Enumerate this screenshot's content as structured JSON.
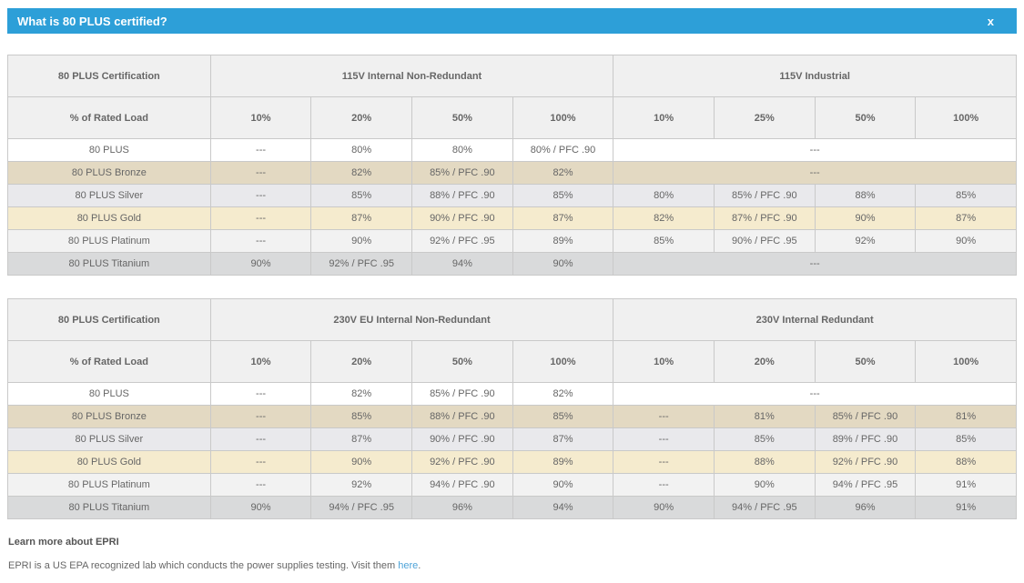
{
  "modal": {
    "title": "What is 80 PLUS certified?",
    "close_label": "x"
  },
  "colors": {
    "titlebar_bg": "#2d9fd8",
    "header_bg": "#f0f0f0",
    "border": "#c9c9c9",
    "link": "#4ea3d8",
    "tiers": {
      "plain": "#ffffff",
      "bronze": "#e3d9c2",
      "silver": "#e9e9ec",
      "gold": "#f5ebce",
      "platinum": "#f2f2f2",
      "titanium": "#d9dadb"
    }
  },
  "tables": [
    {
      "corner_header": "80 PLUS Certification",
      "row_label_header": "% of Rated Load",
      "groups": [
        {
          "label": "115V Internal Non-Redundant",
          "cols": [
            "10%",
            "20%",
            "50%",
            "100%"
          ]
        },
        {
          "label": "115V Industrial",
          "cols": [
            "10%",
            "25%",
            "50%",
            "100%"
          ]
        }
      ],
      "rows": [
        {
          "label": "80 PLUS",
          "tier": "plain",
          "cells": [
            {
              "t": "---"
            },
            {
              "t": "80%"
            },
            {
              "t": "80%"
            },
            {
              "t": "80% / PFC .90"
            },
            {
              "t": "---",
              "s": 4
            }
          ]
        },
        {
          "label": "80 PLUS Bronze",
          "tier": "bronze",
          "cells": [
            {
              "t": "---"
            },
            {
              "t": "82%"
            },
            {
              "t": "85% / PFC .90"
            },
            {
              "t": "82%"
            },
            {
              "t": "---",
              "s": 4
            }
          ]
        },
        {
          "label": "80 PLUS Silver",
          "tier": "silver",
          "cells": [
            {
              "t": "---"
            },
            {
              "t": "85%"
            },
            {
              "t": "88% / PFC .90"
            },
            {
              "t": "85%"
            },
            {
              "t": "80%"
            },
            {
              "t": "85% / PFC .90"
            },
            {
              "t": "88%"
            },
            {
              "t": "85%"
            }
          ]
        },
        {
          "label": "80 PLUS Gold",
          "tier": "gold",
          "cells": [
            {
              "t": "---"
            },
            {
              "t": "87%"
            },
            {
              "t": "90% / PFC .90"
            },
            {
              "t": "87%"
            },
            {
              "t": "82%"
            },
            {
              "t": "87% / PFC .90"
            },
            {
              "t": "90%"
            },
            {
              "t": "87%"
            }
          ]
        },
        {
          "label": "80 PLUS Platinum",
          "tier": "platinum",
          "cells": [
            {
              "t": "---"
            },
            {
              "t": "90%"
            },
            {
              "t": "92% / PFC .95"
            },
            {
              "t": "89%"
            },
            {
              "t": "85%"
            },
            {
              "t": "90% / PFC .95"
            },
            {
              "t": "92%"
            },
            {
              "t": "90%"
            }
          ]
        },
        {
          "label": "80 PLUS Titanium",
          "tier": "titanium",
          "cells": [
            {
              "t": "90%"
            },
            {
              "t": "92% / PFC .95"
            },
            {
              "t": "94%"
            },
            {
              "t": "90%"
            },
            {
              "t": "---",
              "s": 4
            }
          ]
        }
      ]
    },
    {
      "corner_header": "80 PLUS Certification",
      "row_label_header": "% of Rated Load",
      "groups": [
        {
          "label": "230V EU Internal Non-Redundant",
          "cols": [
            "10%",
            "20%",
            "50%",
            "100%"
          ]
        },
        {
          "label": "230V Internal Redundant",
          "cols": [
            "10%",
            "20%",
            "50%",
            "100%"
          ]
        }
      ],
      "rows": [
        {
          "label": "80 PLUS",
          "tier": "plain",
          "cells": [
            {
              "t": "---"
            },
            {
              "t": "82%"
            },
            {
              "t": "85% / PFC .90"
            },
            {
              "t": "82%"
            },
            {
              "t": "---",
              "s": 4
            }
          ]
        },
        {
          "label": "80 PLUS Bronze",
          "tier": "bronze",
          "cells": [
            {
              "t": "---"
            },
            {
              "t": "85%"
            },
            {
              "t": "88% / PFC .90"
            },
            {
              "t": "85%"
            },
            {
              "t": "---"
            },
            {
              "t": "81%"
            },
            {
              "t": "85% / PFC .90"
            },
            {
              "t": "81%"
            }
          ]
        },
        {
          "label": "80 PLUS Silver",
          "tier": "silver",
          "cells": [
            {
              "t": "---"
            },
            {
              "t": "87%"
            },
            {
              "t": "90% / PFC .90"
            },
            {
              "t": "87%"
            },
            {
              "t": "---"
            },
            {
              "t": "85%"
            },
            {
              "t": "89% / PFC .90"
            },
            {
              "t": "85%"
            }
          ]
        },
        {
          "label": "80 PLUS Gold",
          "tier": "gold",
          "cells": [
            {
              "t": "---"
            },
            {
              "t": "90%"
            },
            {
              "t": "92% / PFC .90"
            },
            {
              "t": "89%"
            },
            {
              "t": "---"
            },
            {
              "t": "88%"
            },
            {
              "t": "92% / PFC .90"
            },
            {
              "t": "88%"
            }
          ]
        },
        {
          "label": "80 PLUS Platinum",
          "tier": "platinum",
          "cells": [
            {
              "t": "---"
            },
            {
              "t": "92%"
            },
            {
              "t": "94% / PFC .90"
            },
            {
              "t": "90%"
            },
            {
              "t": "---"
            },
            {
              "t": "90%"
            },
            {
              "t": "94% / PFC .95"
            },
            {
              "t": "91%"
            }
          ]
        },
        {
          "label": "80 PLUS Titanium",
          "tier": "titanium",
          "cells": [
            {
              "t": "90%"
            },
            {
              "t": "94% / PFC .95"
            },
            {
              "t": "96%"
            },
            {
              "t": "94%"
            },
            {
              "t": "90%"
            },
            {
              "t": "94% / PFC .95"
            },
            {
              "t": "96%"
            },
            {
              "t": "91%"
            }
          ]
        }
      ]
    }
  ],
  "footer": {
    "heading": "Learn more about EPRI",
    "body_before_link": "EPRI is a US EPA recognized lab which conducts the power supplies testing. Visit them ",
    "link_text": "here",
    "body_after_link": "."
  }
}
